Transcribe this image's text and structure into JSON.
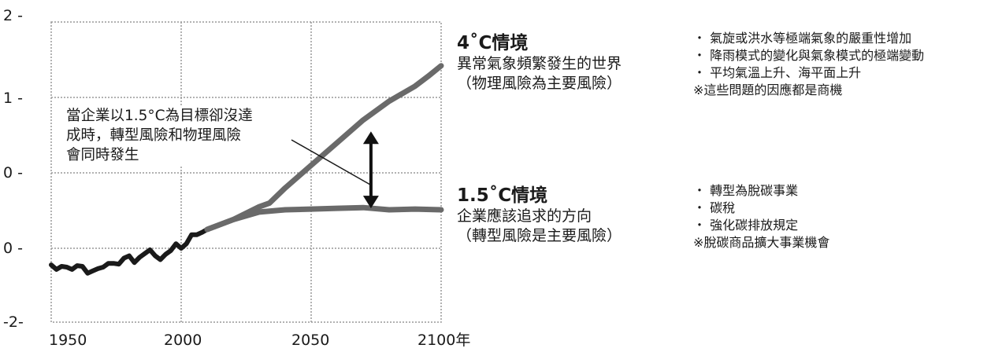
{
  "chart_data": {
    "type": "line",
    "y_tick_labels": [
      "2 -",
      "1 -",
      "0 -",
      "0 -",
      "-2-"
    ],
    "x_tick_labels": [
      "1950",
      "2000",
      "2050",
      "2100年"
    ],
    "xlim": [
      1950,
      2100
    ],
    "grid": true,
    "series": [
      {
        "segment": "observed",
        "x": [
          1950,
          1952,
          1954,
          1956,
          1958,
          1960,
          1962,
          1964,
          1966,
          1968,
          1970,
          1972,
          1974,
          1976,
          1978,
          1980,
          1982,
          1984,
          1986,
          1988,
          1990,
          1992,
          1994,
          1996,
          1998,
          2000,
          2002,
          2004,
          2006,
          2008,
          2010
        ],
        "y": [
          -0.22,
          -0.28,
          -0.24,
          -0.25,
          -0.28,
          -0.23,
          -0.24,
          -0.33,
          -0.3,
          -0.27,
          -0.25,
          -0.2,
          -0.2,
          -0.21,
          -0.13,
          -0.1,
          -0.19,
          -0.12,
          -0.07,
          -0.02,
          -0.1,
          -0.15,
          -0.08,
          -0.03,
          0.06,
          0.0,
          0.06,
          0.18,
          0.18,
          0.21,
          0.25
        ]
      },
      {
        "segment": "4°C",
        "x": [
          2010,
          2020,
          2030,
          2034,
          2040,
          2050,
          2060,
          2070,
          2080,
          2090,
          2095,
          2100
        ],
        "y": [
          0.25,
          0.38,
          0.55,
          0.6,
          0.8,
          1.1,
          1.4,
          1.7,
          1.95,
          2.15,
          2.28,
          2.42
        ]
      },
      {
        "segment": "1.5°C",
        "x": [
          2010,
          2020,
          2030,
          2040,
          2050,
          2060,
          2070,
          2080,
          2090,
          2100
        ],
        "y": [
          0.25,
          0.38,
          0.48,
          0.51,
          0.52,
          0.53,
          0.54,
          0.51,
          0.52,
          0.51
        ]
      }
    ],
    "annotation": {
      "text": [
        "當企業以1.5°C為目標卻沒達",
        "成時，轉型風險和物理風險",
        "會同時發生"
      ],
      "arrow_between": {
        "x": 2073,
        "y_top": 1.55,
        "y_bottom": 0.53
      }
    },
    "colors": {
      "observed": "#1a1a1a",
      "scenario": "#6a6a6a",
      "grid": "#999999"
    }
  },
  "scenario_4c": {
    "title": "4˚C情境",
    "line1": "異常氣象頻繁發生的世界",
    "line2": "（物理風險為主要風險）",
    "notes": [
      "・ 氣旋或洪水等極端氣象的嚴重性增加",
      "・ 降雨模式的變化與氣象模式的極端變動",
      "・ 平均氣溫上升、海平面上升",
      "※這些問題的因應都是商機"
    ]
  },
  "scenario_15c": {
    "title": "1.5˚C情境",
    "line1": "企業應該追求的方向",
    "line2": "（轉型風險是主要風險）",
    "notes": [
      "・ 轉型為脫碳事業",
      "・ 碳稅",
      "・ 強化碳排放規定",
      "※脫碳商品擴大事業機會"
    ]
  }
}
